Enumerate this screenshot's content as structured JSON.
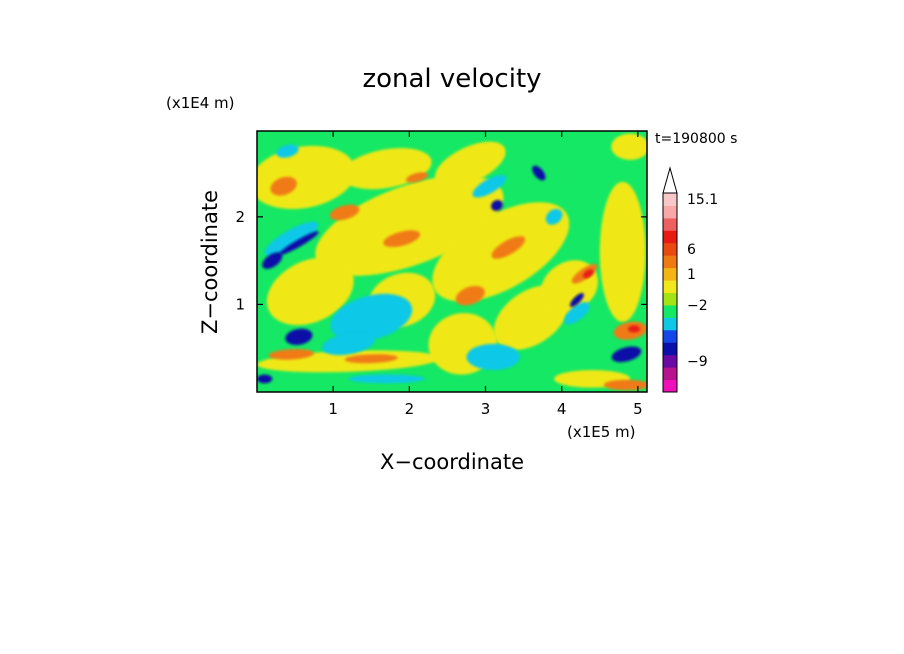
{
  "chart_data": {
    "type": "heatmap",
    "title": "zonal velocity",
    "xlabel": "X−coordinate",
    "ylabel": "Z−coordinate",
    "x_scale_label": "(x1E5 m)",
    "y_scale_label": "(x1E4 m)",
    "time_label": "t=190800 s",
    "xlim": [
      0,
      5.12
    ],
    "ylim": [
      0,
      2.98
    ],
    "x_ticks": [
      1,
      2,
      3,
      4,
      5
    ],
    "x_tick_labels": [
      "1",
      "2",
      "3",
      "4",
      "5"
    ],
    "y_ticks": [
      1,
      2
    ],
    "y_tick_labels": [
      "1",
      "2"
    ],
    "colorbar": {
      "colors": [
        "#ee10b8",
        "#b8128e",
        "#6a0aa2",
        "#0a10a8",
        "#1446ea",
        "#10c8e6",
        "#14e864",
        "#a4e414",
        "#f0e818",
        "#f4b414",
        "#f07a12",
        "#ea4a12",
        "#e81a12",
        "#ee6060",
        "#f8a8a8",
        "#f8c8c8"
      ],
      "labels": [
        {
          "text": "15.1",
          "index": 15
        },
        {
          "text": "6",
          "index": 11
        },
        {
          "text": "1",
          "index": 9
        },
        {
          "text": "−2",
          "index": 6.5
        },
        {
          "text": "−9",
          "index": 2
        }
      ]
    },
    "background_color": "#14e864",
    "features": [
      {
        "level": "yellow",
        "x": 2.0,
        "z": 1.9,
        "rx": 1.3,
        "rz": 0.45,
        "rot": -20
      },
      {
        "level": "yellow",
        "x": 0.6,
        "z": 2.45,
        "rx": 0.7,
        "rz": 0.35,
        "rot": -10
      },
      {
        "level": "yellow",
        "x": 1.7,
        "z": 2.55,
        "rx": 0.6,
        "rz": 0.22,
        "rot": -10
      },
      {
        "level": "yellow",
        "x": 2.8,
        "z": 2.6,
        "rx": 0.5,
        "rz": 0.2,
        "rot": -25
      },
      {
        "level": "yellow",
        "x": 3.2,
        "z": 1.6,
        "rx": 1.0,
        "rz": 0.42,
        "rot": -30
      },
      {
        "level": "yellow",
        "x": 0.7,
        "z": 1.15,
        "rx": 0.6,
        "rz": 0.35,
        "rot": -25
      },
      {
        "level": "yellow",
        "x": 1.9,
        "z": 1.05,
        "rx": 0.45,
        "rz": 0.3,
        "rot": -20
      },
      {
        "level": "yellow",
        "x": 2.7,
        "z": 0.55,
        "rx": 0.45,
        "rz": 0.35,
        "rot": -10
      },
      {
        "level": "yellow",
        "x": 1.2,
        "z": 0.35,
        "rx": 1.2,
        "rz": 0.12,
        "rot": -2
      },
      {
        "level": "yellow",
        "x": 3.6,
        "z": 0.85,
        "rx": 0.55,
        "rz": 0.3,
        "rot": -35
      },
      {
        "level": "yellow",
        "x": 4.1,
        "z": 1.2,
        "rx": 0.4,
        "rz": 0.28,
        "rot": -35
      },
      {
        "level": "yellow",
        "x": 4.4,
        "z": 0.15,
        "rx": 0.5,
        "rz": 0.1,
        "rot": 0
      },
      {
        "level": "yellow",
        "x": 4.8,
        "z": 1.6,
        "rx": 0.3,
        "rz": 0.8,
        "rot": 0
      },
      {
        "level": "yellow",
        "x": 4.9,
        "z": 2.8,
        "rx": 0.25,
        "rz": 0.15,
        "rot": 0
      },
      {
        "level": "orange",
        "x": 1.15,
        "z": 2.05,
        "rx": 0.2,
        "rz": 0.08,
        "rot": -15
      },
      {
        "level": "orange",
        "x": 0.35,
        "z": 2.35,
        "rx": 0.18,
        "rz": 0.1,
        "rot": -20
      },
      {
        "level": "orange",
        "x": 1.9,
        "z": 1.75,
        "rx": 0.25,
        "rz": 0.08,
        "rot": -15
      },
      {
        "level": "orange",
        "x": 2.8,
        "z": 1.1,
        "rx": 0.2,
        "rz": 0.1,
        "rot": -20
      },
      {
        "level": "orange",
        "x": 0.45,
        "z": 0.43,
        "rx": 0.3,
        "rz": 0.06,
        "rot": -3
      },
      {
        "level": "orange",
        "x": 1.5,
        "z": 0.38,
        "rx": 0.35,
        "rz": 0.05,
        "rot": -2
      },
      {
        "level": "orange",
        "x": 3.3,
        "z": 1.65,
        "rx": 0.25,
        "rz": 0.08,
        "rot": -30
      },
      {
        "level": "orange",
        "x": 4.3,
        "z": 1.35,
        "rx": 0.2,
        "rz": 0.06,
        "rot": -35
      },
      {
        "level": "orange",
        "x": 4.9,
        "z": 0.7,
        "rx": 0.22,
        "rz": 0.1,
        "rot": -10
      },
      {
        "level": "orange",
        "x": 4.85,
        "z": 0.08,
        "rx": 0.3,
        "rz": 0.06,
        "rot": 0
      },
      {
        "level": "orange",
        "x": 2.1,
        "z": 2.45,
        "rx": 0.15,
        "rz": 0.05,
        "rot": -15
      },
      {
        "level": "cyan",
        "x": 1.5,
        "z": 0.85,
        "rx": 0.55,
        "rz": 0.25,
        "rot": -15
      },
      {
        "level": "cyan",
        "x": 1.2,
        "z": 0.55,
        "rx": 0.35,
        "rz": 0.12,
        "rot": -10
      },
      {
        "level": "cyan",
        "x": 3.1,
        "z": 0.4,
        "rx": 0.35,
        "rz": 0.15,
        "rot": 0
      },
      {
        "level": "cyan",
        "x": 3.05,
        "z": 2.35,
        "rx": 0.25,
        "rz": 0.08,
        "rot": -30
      },
      {
        "level": "cyan",
        "x": 0.45,
        "z": 1.75,
        "rx": 0.4,
        "rz": 0.1,
        "rot": -30
      },
      {
        "level": "cyan",
        "x": 3.9,
        "z": 2.0,
        "rx": 0.12,
        "rz": 0.08,
        "rot": -40
      },
      {
        "level": "cyan",
        "x": 4.2,
        "z": 0.9,
        "rx": 0.2,
        "rz": 0.08,
        "rot": -40
      },
      {
        "level": "cyan",
        "x": 1.7,
        "z": 0.15,
        "rx": 0.5,
        "rz": 0.05,
        "rot": 0
      },
      {
        "level": "cyan",
        "x": 0.4,
        "z": 2.75,
        "rx": 0.15,
        "rz": 0.07,
        "rot": -15
      },
      {
        "level": "blue",
        "x": 0.55,
        "z": 0.63,
        "rx": 0.18,
        "rz": 0.09,
        "rot": -10
      },
      {
        "level": "blue",
        "x": 0.2,
        "z": 1.5,
        "rx": 0.15,
        "rz": 0.07,
        "rot": -35
      },
      {
        "level": "blue",
        "x": 0.55,
        "z": 1.7,
        "rx": 0.3,
        "rz": 0.04,
        "rot": -30
      },
      {
        "level": "blue",
        "x": 3.15,
        "z": 2.13,
        "rx": 0.08,
        "rz": 0.06,
        "rot": -30
      },
      {
        "level": "blue",
        "x": 4.85,
        "z": 0.43,
        "rx": 0.2,
        "rz": 0.08,
        "rot": -15
      },
      {
        "level": "blue",
        "x": 4.2,
        "z": 1.05,
        "rx": 0.12,
        "rz": 0.04,
        "rot": -45
      },
      {
        "level": "blue",
        "x": 3.7,
        "z": 2.5,
        "rx": 0.06,
        "rz": 0.1,
        "rot": -40
      },
      {
        "level": "blue",
        "x": 0.1,
        "z": 0.15,
        "rx": 0.1,
        "rz": 0.05,
        "rot": 0
      },
      {
        "level": "red",
        "x": 4.35,
        "z": 1.35,
        "rx": 0.08,
        "rz": 0.04,
        "rot": -35
      },
      {
        "level": "red",
        "x": 4.95,
        "z": 0.72,
        "rx": 0.08,
        "rz": 0.04,
        "rot": 0
      }
    ]
  }
}
